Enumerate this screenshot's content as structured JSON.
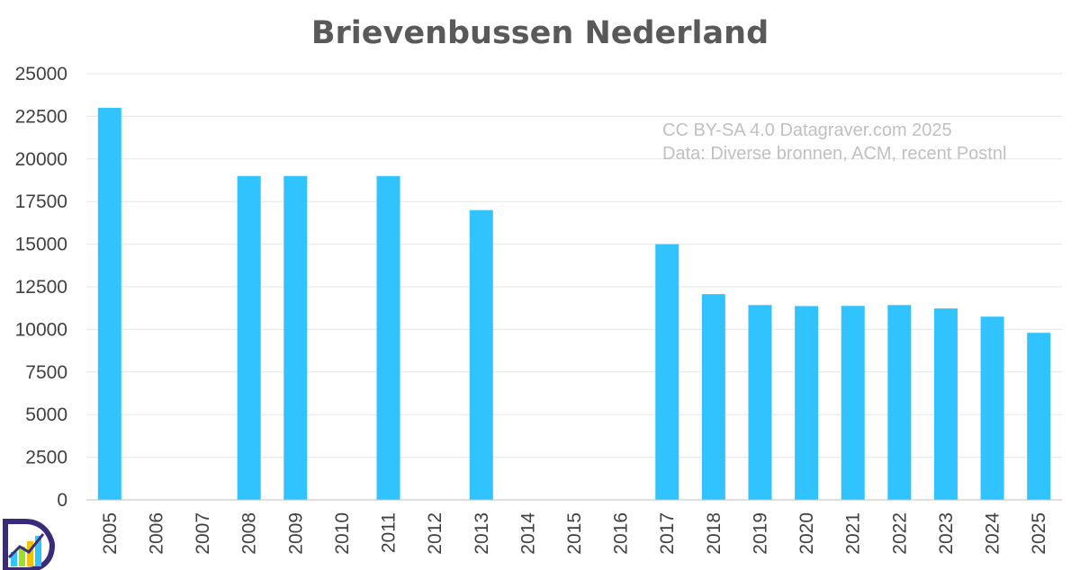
{
  "chart_data": {
    "type": "bar",
    "title": "Brievenbussen Nederland",
    "categories": [
      "2005",
      "2006",
      "2007",
      "2008",
      "2009",
      "2010",
      "2011",
      "2012",
      "2013",
      "2014",
      "2015",
      "2016",
      "2017",
      "2018",
      "2019",
      "2020",
      "2021",
      "2022",
      "2023",
      "2024",
      "2025"
    ],
    "values": [
      23000,
      null,
      null,
      19000,
      19000,
      null,
      19000,
      null,
      17000,
      null,
      null,
      null,
      15000,
      12070,
      11430,
      11370,
      11380,
      11430,
      11230,
      10750,
      9800
    ],
    "ylim": [
      0,
      25000
    ],
    "yticks": [
      "0",
      "2500",
      "5000",
      "7500",
      "10000",
      "12500",
      "15000",
      "17500",
      "20000",
      "22500",
      "25000"
    ],
    "xlabel": "",
    "ylabel": "",
    "grid": true,
    "legend": "none",
    "bar_color": "#31c3fd",
    "annotations": [
      "CC BY-SA 4.0 Datagraver.com 2025",
      "Data: Diverse bronnen, ACM, recent Postnl"
    ]
  },
  "logo": {
    "name": "datagraver-logo",
    "colors": [
      "#3a2a7a",
      "#31c3fd",
      "#9be02b",
      "#f2c200"
    ]
  }
}
